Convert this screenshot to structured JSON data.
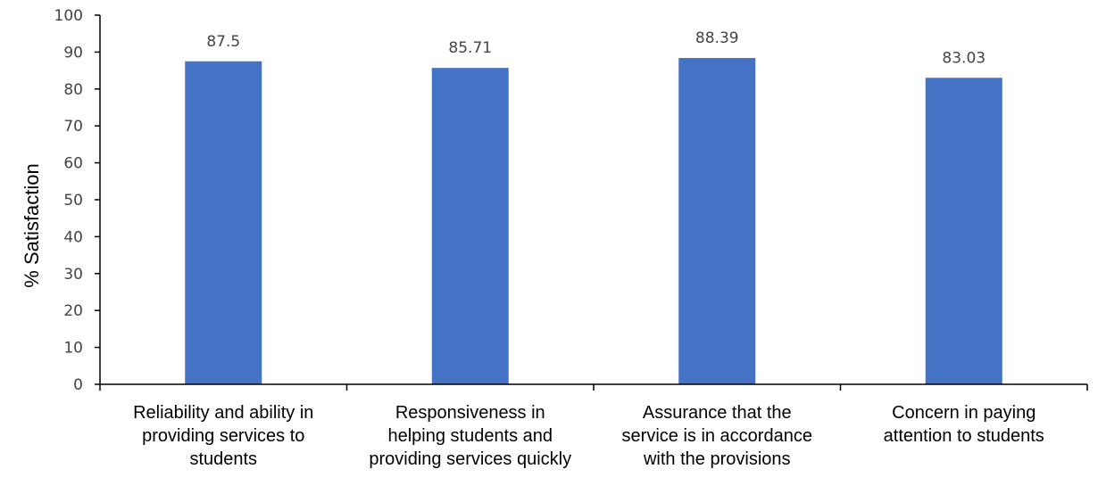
{
  "chart_data": {
    "type": "bar",
    "categories": [
      "Reliability and ability in providing services to students",
      "Responsiveness in helping students and providing services quickly",
      "Assurance that the service is in accordance with the provisions",
      "Concern in paying attention to students"
    ],
    "values": [
      87.5,
      85.71,
      88.39,
      83.03
    ],
    "value_labels": [
      "87.5",
      "85.71",
      "88.39",
      "83.03"
    ],
    "ylabel": "% Satisfaction",
    "ylim": [
      0,
      100
    ],
    "yticks": [
      0,
      10,
      20,
      30,
      40,
      50,
      60,
      70,
      80,
      90,
      100
    ],
    "bar_color": "#4472C4",
    "grid": false,
    "legend": "none"
  }
}
